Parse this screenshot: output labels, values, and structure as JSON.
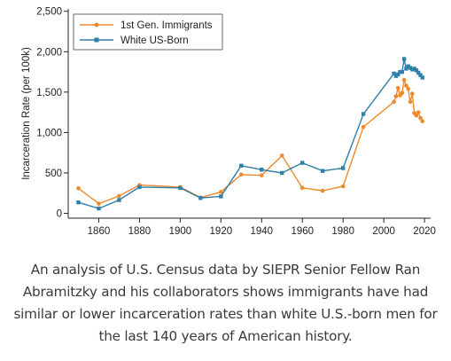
{
  "chart_data": {
    "type": "line",
    "title": "",
    "xlabel": "",
    "ylabel": "Incarceration Rate (per 100k)",
    "xlim": [
      1845,
      2023
    ],
    "ylim": [
      -60,
      2530
    ],
    "xticks": [
      1860,
      1880,
      1900,
      1920,
      1940,
      1960,
      1980,
      2000,
      2020
    ],
    "yticks": [
      0,
      500,
      1000,
      1500,
      2000,
      2500
    ],
    "ytick_labels": [
      "0",
      "500",
      "1,000",
      "1,500",
      "2,000",
      "2,500"
    ],
    "grid": false,
    "legend_position": "top-left",
    "series": [
      {
        "name": "1st Gen. Immigrants",
        "color": "#ee8a2e",
        "marker": "circle",
        "points": [
          [
            1850,
            310
          ],
          [
            1860,
            120
          ],
          [
            1870,
            215
          ],
          [
            1880,
            350
          ],
          [
            1900,
            325
          ],
          [
            1910,
            195
          ],
          [
            1920,
            265
          ],
          [
            1930,
            480
          ],
          [
            1940,
            470
          ],
          [
            1950,
            715
          ],
          [
            1960,
            315
          ],
          [
            1970,
            280
          ],
          [
            1980,
            335
          ],
          [
            1990,
            1070
          ],
          [
            2005,
            1380
          ],
          [
            2006,
            1450
          ],
          [
            2007,
            1550
          ],
          [
            2008,
            1460
          ],
          [
            2009,
            1490
          ],
          [
            2010,
            1650
          ],
          [
            2011,
            1580
          ],
          [
            2012,
            1540
          ],
          [
            2013,
            1380
          ],
          [
            2014,
            1480
          ],
          [
            2015,
            1240
          ],
          [
            2016,
            1210
          ],
          [
            2017,
            1250
          ],
          [
            2018,
            1180
          ],
          [
            2019,
            1140
          ]
        ]
      },
      {
        "name": "White US-Born",
        "color": "#2f7fa8",
        "marker": "square",
        "points": [
          [
            1850,
            135
          ],
          [
            1860,
            60
          ],
          [
            1870,
            165
          ],
          [
            1880,
            325
          ],
          [
            1900,
            315
          ],
          [
            1910,
            190
          ],
          [
            1920,
            210
          ],
          [
            1930,
            590
          ],
          [
            1940,
            540
          ],
          [
            1950,
            500
          ],
          [
            1960,
            625
          ],
          [
            1970,
            525
          ],
          [
            1980,
            560
          ],
          [
            1990,
            1230
          ],
          [
            2005,
            1730
          ],
          [
            2006,
            1700
          ],
          [
            2007,
            1720
          ],
          [
            2008,
            1750
          ],
          [
            2009,
            1750
          ],
          [
            2010,
            1910
          ],
          [
            2011,
            1790
          ],
          [
            2012,
            1820
          ],
          [
            2013,
            1800
          ],
          [
            2014,
            1780
          ],
          [
            2015,
            1790
          ],
          [
            2016,
            1770
          ],
          [
            2017,
            1740
          ],
          [
            2018,
            1710
          ],
          [
            2019,
            1680
          ]
        ]
      }
    ]
  },
  "caption": "An analysis of U.S. Census data by SIEPR Senior Fellow Ran Abramitzky and his collaborators shows immigrants have had similar or lower incarceration rates than white U.S.-born men for the last 140 years of American history."
}
